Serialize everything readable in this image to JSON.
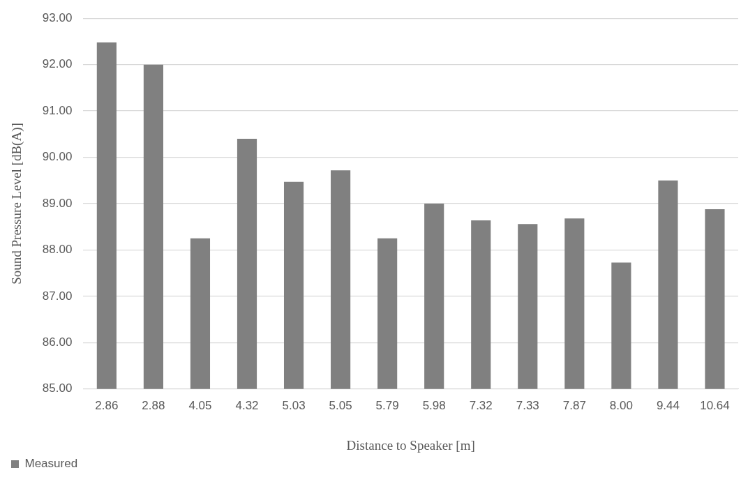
{
  "chart_data": {
    "type": "bar",
    "xlabel": "Distance to Speaker [m]",
    "ylabel": "Sound Pressure Level [dB(A)]",
    "categories": [
      "2.86",
      "2.88",
      "4.05",
      "4.32",
      "5.03",
      "5.05",
      "5.79",
      "5.98",
      "7.32",
      "7.33",
      "7.87",
      "8.00",
      "9.44",
      "10.64"
    ],
    "series": [
      {
        "name": "Measured",
        "color": "#808080",
        "values": [
          92.48,
          92.0,
          88.25,
          90.4,
          89.47,
          89.72,
          88.25,
          89.0,
          88.64,
          88.56,
          88.68,
          87.73,
          89.5,
          88.88
        ]
      }
    ],
    "ylim": [
      85,
      93
    ],
    "yticks": [
      {
        "value": 85,
        "label": "85.00"
      },
      {
        "value": 86,
        "label": "86.00"
      },
      {
        "value": 87,
        "label": "87.00"
      },
      {
        "value": 88,
        "label": "88.00"
      },
      {
        "value": 89,
        "label": "89.00"
      },
      {
        "value": 90,
        "label": "90.00"
      },
      {
        "value": 91,
        "label": "91.00"
      },
      {
        "value": 92,
        "label": "92.00"
      },
      {
        "value": 93,
        "label": "93.00"
      }
    ],
    "grid": "y",
    "legend": "bottom left"
  }
}
